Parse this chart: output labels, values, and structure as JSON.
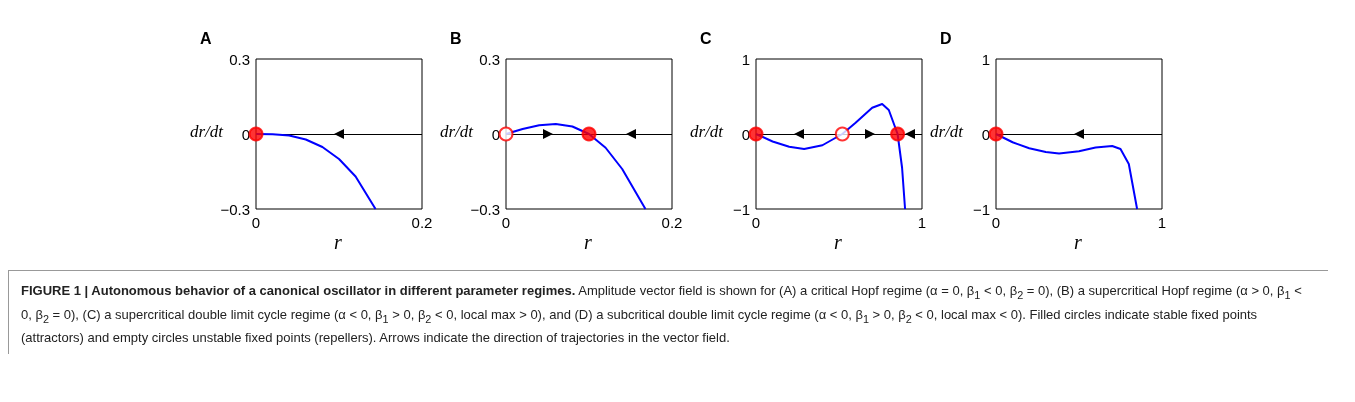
{
  "chart_data": [
    {
      "type": "line",
      "title": "A",
      "xlabel": "r",
      "ylabel": "dr/dt",
      "xlim": [
        0,
        0.2
      ],
      "xticks": [
        0,
        0.2
      ],
      "ylim": [
        -0.3,
        0.3
      ],
      "yticks": [
        {
          "value": -0.3,
          "label": "−0.3"
        },
        0,
        0.3
      ],
      "grid": false,
      "marker": "none",
      "line_style": "solid",
      "ref_lines": [
        {
          "axis": "y",
          "value": 0,
          "color": "#000000"
        }
      ],
      "series": [
        {
          "type": "line",
          "color": "#0000ff",
          "x": [
            0,
            0.02,
            0.04,
            0.06,
            0.08,
            0.1,
            0.12,
            0.144
          ],
          "values": [
            0,
            -0.001,
            -0.006,
            -0.022,
            -0.052,
            -0.1,
            -0.17,
            -0.3
          ]
        },
        {
          "type": "scatter",
          "marker": "circle",
          "colors": [
            "#ff0000"
          ],
          "color": "#ff0000",
          "x": [
            0
          ],
          "values": [
            0
          ]
        }
      ]
    },
    {
      "type": "line",
      "title": "B",
      "xlabel": "r",
      "ylabel": "dr/dt",
      "xlim": [
        0,
        0.2
      ],
      "xticks": [
        0,
        0.2
      ],
      "ylim": [
        -0.3,
        0.3
      ],
      "yticks": [
        {
          "value": -0.3,
          "label": "−0.3"
        },
        0,
        0.3
      ],
      "grid": false,
      "marker": "none",
      "line_style": "solid",
      "ref_lines": [
        {
          "axis": "y",
          "value": 0,
          "color": "#000000"
        }
      ],
      "series": [
        {
          "type": "line",
          "color": "#0000ff",
          "x": [
            0,
            0.02,
            0.04,
            0.06,
            0.08,
            0.1,
            0.12,
            0.14,
            0.168
          ],
          "values": [
            0,
            0.02,
            0.035,
            0.04,
            0.03,
            0,
            -0.055,
            -0.14,
            -0.3
          ]
        },
        {
          "type": "scatter",
          "marker": "circle",
          "colors": [
            "#ffffff"
          ],
          "color": "#ff0000",
          "x": [
            0
          ],
          "values": [
            0
          ]
        },
        {
          "type": "scatter",
          "marker": "circle",
          "colors": [
            "#ff0000"
          ],
          "color": "#ff0000",
          "x": [
            0.1
          ],
          "values": [
            0
          ]
        }
      ]
    },
    {
      "type": "line",
      "title": "C",
      "xlabel": "r",
      "ylabel": "dr/dt",
      "xlim": [
        0,
        1
      ],
      "xticks": [
        0,
        1
      ],
      "ylim": [
        -1,
        1
      ],
      "yticks": [
        {
          "value": -1,
          "label": "−1"
        },
        0,
        1
      ],
      "grid": false,
      "marker": "none",
      "line_style": "solid",
      "ref_lines": [
        {
          "axis": "y",
          "value": 0,
          "color": "#000000"
        }
      ],
      "series": [
        {
          "type": "line",
          "color": "#0000ff",
          "x": [
            0,
            0.1,
            0.2,
            0.29,
            0.4,
            0.52,
            0.6,
            0.7,
            0.76,
            0.8,
            0.853,
            0.88,
            0.898
          ],
          "values": [
            0,
            -0.1,
            -0.17,
            -0.2,
            -0.15,
            0,
            0.15,
            0.35,
            0.4,
            0.32,
            0,
            -0.45,
            -1
          ]
        },
        {
          "type": "scatter",
          "marker": "circle",
          "colors": [
            "#ff0000",
            "#ff0000"
          ],
          "color": "#ff0000",
          "x": [
            0,
            0.853
          ],
          "values": [
            0,
            0
          ]
        },
        {
          "type": "scatter",
          "marker": "circle",
          "colors": [
            "#ffffff"
          ],
          "color": "#ff0000",
          "x": [
            0.52
          ],
          "values": [
            0
          ]
        }
      ]
    },
    {
      "type": "line",
      "title": "D",
      "xlabel": "r",
      "ylabel": "dr/dt",
      "xlim": [
        0,
        1
      ],
      "xticks": [
        0,
        1
      ],
      "ylim": [
        -1,
        1
      ],
      "yticks": [
        {
          "value": -1,
          "label": "−1"
        },
        0,
        1
      ],
      "grid": false,
      "marker": "none",
      "line_style": "solid",
      "ref_lines": [
        {
          "axis": "y",
          "value": 0,
          "color": "#000000"
        }
      ],
      "series": [
        {
          "type": "line",
          "color": "#0000ff",
          "x": [
            0,
            0.1,
            0.2,
            0.3,
            0.38,
            0.5,
            0.6,
            0.7,
            0.75,
            0.8,
            0.85
          ],
          "values": [
            0,
            -0.11,
            -0.19,
            -0.24,
            -0.26,
            -0.23,
            -0.18,
            -0.16,
            -0.2,
            -0.4,
            -1
          ]
        },
        {
          "type": "scatter",
          "marker": "circle",
          "colors": [
            "#ff0000"
          ],
          "color": "#ff0000",
          "x": [
            0
          ],
          "values": [
            0
          ]
        }
      ]
    },
    {
      "type": "other",
      "title": "FIGURE 1 | Autonomous behavior of a canonical oscillator in different parameter regimes.",
      "annotations": [
        "Amplitude vector field is shown for (A) a critical Hopf regime (α = 0, β$_{1}$ < 0, β$_{2}$ = 0), (B) a supercritical Hopf regime (α > 0, β$_{1}$ < 0, β$_{2}$ = 0), (C) a supercritical double limit cycle regime (α < 0, β$_{1}$ > 0, β$_{2}$ < 0, local max > 0), and (D) a subcritical double limit cycle regime (α < 0, β$_{1}$ > 0, β$_{2}$ < 0, local max < 0). Filled circles indicate stable fixed points (attractors) and empty circles unstable fixed points (repellers). Arrows indicate the direction of trajectories in the vector field."
      ]
    }
  ]
}
